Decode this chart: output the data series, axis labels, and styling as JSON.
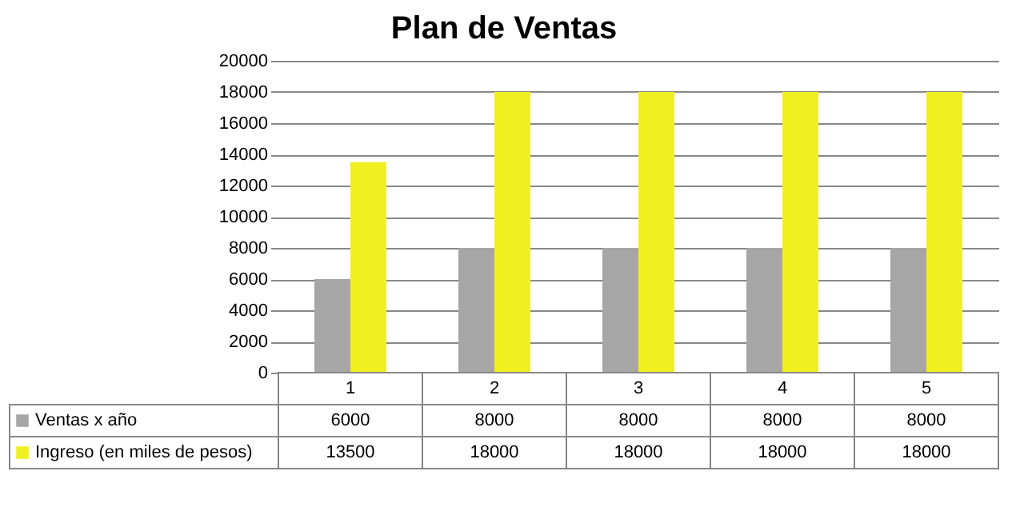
{
  "chart_data": {
    "type": "bar",
    "title": "Plan de Ventas",
    "categories": [
      "1",
      "2",
      "3",
      "4",
      "5"
    ],
    "series": [
      {
        "name": "Ventas x año",
        "color": "#a6a6a6",
        "values": [
          6000,
          8000,
          8000,
          8000,
          8000
        ]
      },
      {
        "name": "Ingreso (en miles de pesos)",
        "color": "#f0f020",
        "values": [
          13500,
          18000,
          18000,
          18000,
          18000
        ]
      }
    ],
    "ylim": [
      0,
      20000
    ],
    "yticks": [
      0,
      2000,
      4000,
      6000,
      8000,
      10000,
      12000,
      14000,
      16000,
      18000,
      20000
    ],
    "grid": "y",
    "legend": "bottom",
    "data_labels": true
  }
}
